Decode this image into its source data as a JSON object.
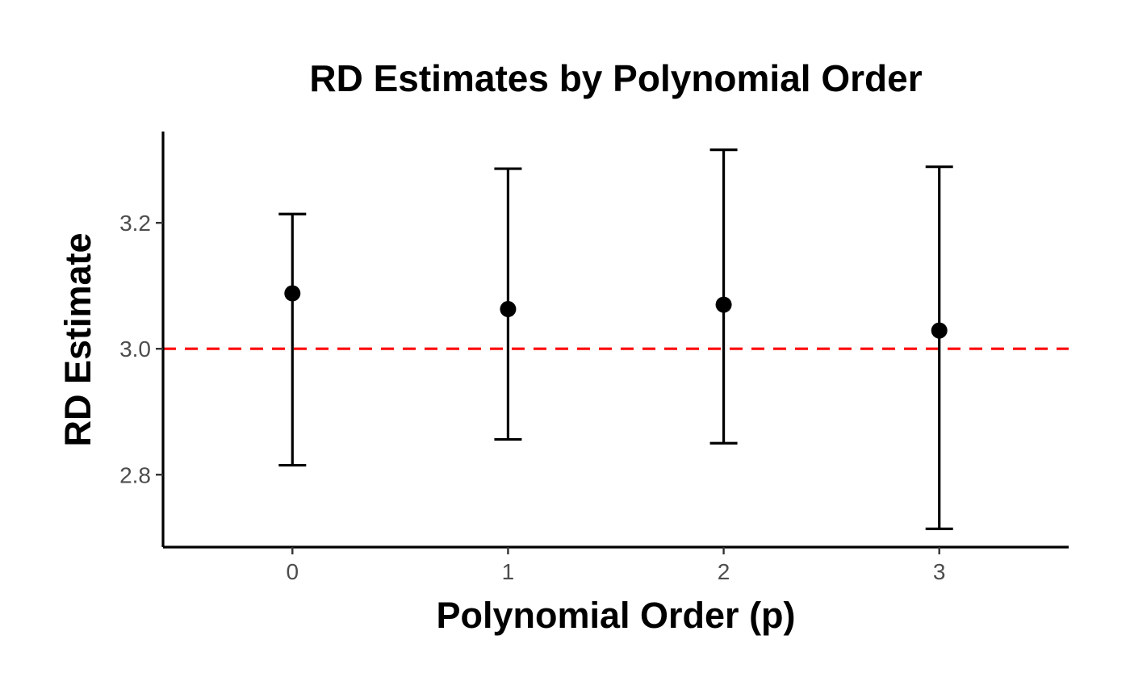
{
  "chart_data": {
    "type": "scatter",
    "subtype": "point-with-error-bars",
    "title": "RD Estimates by Polynomial Order",
    "xlabel": "Polynomial Order (p)",
    "ylabel": "RD Estimate",
    "x_ticks": [
      "0",
      "1",
      "2",
      "3"
    ],
    "y_ticks": [
      "2.8",
      "3.0",
      "3.2"
    ],
    "xlim": [
      -0.6,
      3.6
    ],
    "ylim": [
      2.685,
      3.345
    ],
    "points": [
      {
        "x": 0,
        "estimate": 3.088,
        "lower": 2.815,
        "upper": 3.214
      },
      {
        "x": 1,
        "estimate": 3.063,
        "lower": 2.856,
        "upper": 3.286
      },
      {
        "x": 2,
        "estimate": 3.07,
        "lower": 2.85,
        "upper": 3.316
      },
      {
        "x": 3,
        "estimate": 3.029,
        "lower": 2.714,
        "upper": 3.289
      }
    ],
    "reference_line": {
      "y": 3.0,
      "color": "#ff0000",
      "style": "dashed"
    },
    "point_color": "#000000",
    "grid": false,
    "legend": "none"
  }
}
